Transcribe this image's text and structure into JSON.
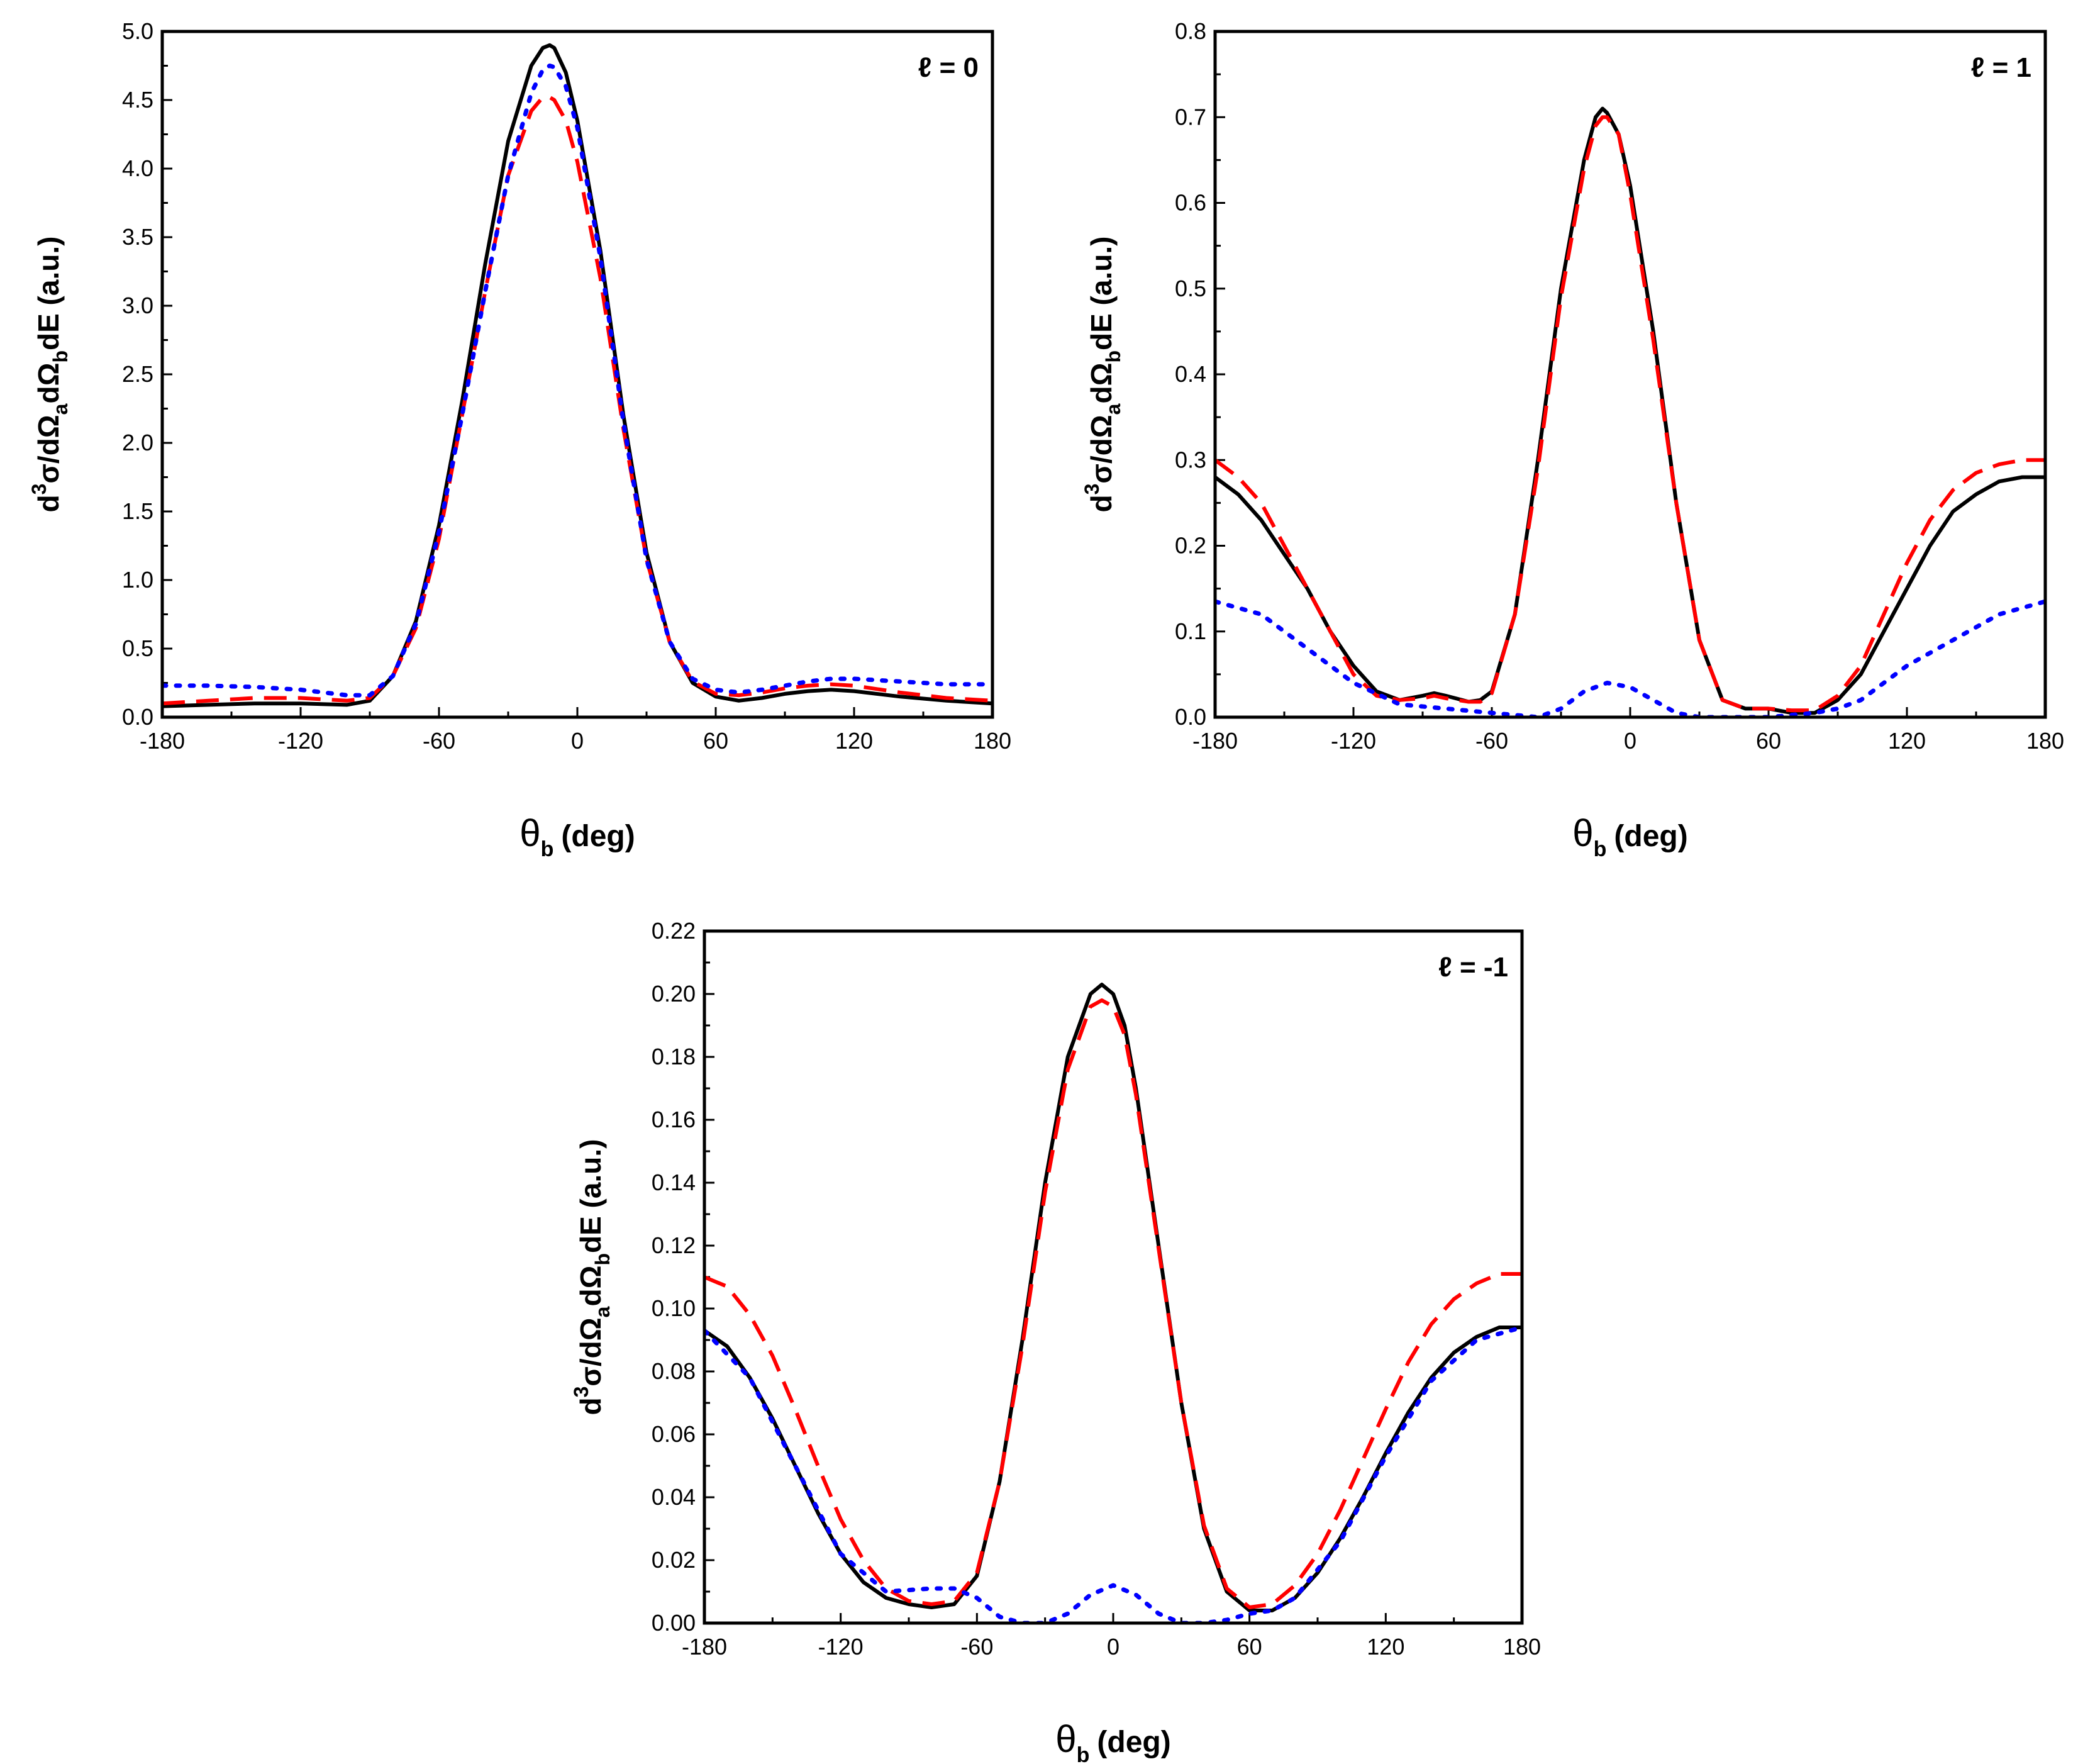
{
  "figure_caption": "",
  "chart_data": [
    {
      "type": "line",
      "panel_label": "ℓ = 0",
      "title": "",
      "xlabel_symbol": "θ",
      "xlabel_sub": "b",
      "xlabel_unit": "(deg)",
      "ylabel_parts": [
        "d",
        "3",
        "σ/dΩ",
        "a",
        "dΩ",
        "b",
        "dE (a.u.)"
      ],
      "xlim": [
        -180,
        180
      ],
      "ylim": [
        0,
        5.0
      ],
      "xticks": [
        "-180",
        "-120",
        "-60",
        "0",
        "60",
        "120",
        "180"
      ],
      "yticks": [
        "0.0",
        "0.5",
        "1.0",
        "1.5",
        "2.0",
        "2.5",
        "3.0",
        "3.5",
        "4.0",
        "4.5",
        "5.0"
      ],
      "series": [
        {
          "name": "solid",
          "color": "#000000",
          "style": "solid",
          "x": [
            -180,
            -160,
            -140,
            -120,
            -100,
            -90,
            -80,
            -70,
            -60,
            -50,
            -40,
            -30,
            -20,
            -15,
            -12,
            -10,
            -5,
            0,
            10,
            20,
            30,
            40,
            50,
            60,
            70,
            80,
            90,
            100,
            110,
            120,
            140,
            160,
            180
          ],
          "y": [
            0.08,
            0.09,
            0.1,
            0.1,
            0.09,
            0.12,
            0.3,
            0.7,
            1.4,
            2.3,
            3.3,
            4.2,
            4.75,
            4.88,
            4.9,
            4.88,
            4.7,
            4.35,
            3.4,
            2.2,
            1.2,
            0.55,
            0.25,
            0.15,
            0.12,
            0.14,
            0.17,
            0.19,
            0.2,
            0.19,
            0.15,
            0.12,
            0.1
          ]
        },
        {
          "name": "dashed",
          "color": "#ff0000",
          "style": "dashed",
          "x": [
            -180,
            -160,
            -140,
            -120,
            -100,
            -90,
            -80,
            -70,
            -60,
            -50,
            -40,
            -30,
            -20,
            -15,
            -12,
            -10,
            -5,
            0,
            10,
            20,
            30,
            40,
            50,
            60,
            70,
            80,
            90,
            100,
            110,
            120,
            140,
            160,
            180
          ],
          "y": [
            0.1,
            0.12,
            0.14,
            0.14,
            0.12,
            0.14,
            0.3,
            0.65,
            1.3,
            2.2,
            3.1,
            3.95,
            4.42,
            4.52,
            4.52,
            4.5,
            4.35,
            4.05,
            3.2,
            2.1,
            1.15,
            0.55,
            0.26,
            0.17,
            0.16,
            0.18,
            0.21,
            0.23,
            0.24,
            0.23,
            0.18,
            0.14,
            0.12
          ]
        },
        {
          "name": "dotted",
          "color": "#0000ff",
          "style": "dotted",
          "x": [
            -180,
            -160,
            -140,
            -120,
            -100,
            -90,
            -80,
            -70,
            -60,
            -50,
            -40,
            -30,
            -20,
            -15,
            -12,
            -10,
            -5,
            0,
            10,
            20,
            30,
            40,
            50,
            60,
            70,
            80,
            90,
            100,
            110,
            120,
            140,
            160,
            180
          ],
          "y": [
            0.23,
            0.23,
            0.22,
            0.2,
            0.16,
            0.16,
            0.3,
            0.68,
            1.35,
            2.2,
            3.1,
            3.95,
            4.55,
            4.72,
            4.75,
            4.74,
            4.6,
            4.3,
            3.35,
            2.15,
            1.15,
            0.55,
            0.28,
            0.2,
            0.18,
            0.2,
            0.23,
            0.26,
            0.28,
            0.28,
            0.26,
            0.24,
            0.24
          ]
        }
      ]
    },
    {
      "type": "line",
      "panel_label": "ℓ = 1",
      "title": "",
      "xlabel_symbol": "θ",
      "xlabel_sub": "b",
      "xlabel_unit": "(deg)",
      "ylabel_parts": [
        "d",
        "3",
        "σ/dΩ",
        "a",
        "dΩ",
        "b",
        "dE (a.u.)"
      ],
      "xlim": [
        -180,
        180
      ],
      "ylim": [
        0,
        0.8
      ],
      "xticks": [
        "-180",
        "-120",
        "-60",
        "0",
        "60",
        "120",
        "180"
      ],
      "yticks": [
        "0.0",
        "0.1",
        "0.2",
        "0.3",
        "0.4",
        "0.5",
        "0.6",
        "0.7",
        "0.8"
      ],
      "series": [
        {
          "name": "solid",
          "color": "#000000",
          "style": "solid",
          "x": [
            -180,
            -170,
            -160,
            -150,
            -140,
            -130,
            -120,
            -110,
            -100,
            -90,
            -85,
            -80,
            -70,
            -65,
            -60,
            -50,
            -40,
            -30,
            -20,
            -15,
            -12,
            -10,
            -5,
            0,
            10,
            20,
            30,
            40,
            50,
            60,
            70,
            80,
            90,
            100,
            110,
            120,
            130,
            140,
            150,
            160,
            170,
            175,
            180
          ],
          "y": [
            0.28,
            0.26,
            0.23,
            0.19,
            0.15,
            0.1,
            0.06,
            0.03,
            0.02,
            0.025,
            0.028,
            0.025,
            0.018,
            0.02,
            0.03,
            0.12,
            0.3,
            0.5,
            0.65,
            0.7,
            0.71,
            0.705,
            0.68,
            0.62,
            0.45,
            0.25,
            0.09,
            0.02,
            0.01,
            0.01,
            0.005,
            0.005,
            0.02,
            0.05,
            0.1,
            0.15,
            0.2,
            0.24,
            0.26,
            0.275,
            0.28,
            0.28,
            0.28
          ]
        },
        {
          "name": "dashed",
          "color": "#ff0000",
          "style": "dashed",
          "x": [
            -180,
            -170,
            -160,
            -150,
            -140,
            -130,
            -120,
            -110,
            -100,
            -90,
            -85,
            -80,
            -70,
            -65,
            -60,
            -50,
            -40,
            -30,
            -20,
            -15,
            -12,
            -10,
            -5,
            0,
            10,
            20,
            30,
            40,
            50,
            60,
            70,
            80,
            90,
            100,
            110,
            120,
            130,
            140,
            150,
            160,
            170,
            175,
            180
          ],
          "y": [
            0.3,
            0.28,
            0.25,
            0.2,
            0.15,
            0.1,
            0.05,
            0.025,
            0.02,
            0.022,
            0.025,
            0.022,
            0.018,
            0.018,
            0.028,
            0.12,
            0.29,
            0.49,
            0.64,
            0.69,
            0.7,
            0.7,
            0.68,
            0.61,
            0.44,
            0.25,
            0.09,
            0.02,
            0.01,
            0.01,
            0.008,
            0.008,
            0.025,
            0.06,
            0.12,
            0.18,
            0.23,
            0.265,
            0.285,
            0.295,
            0.3,
            0.3,
            0.3
          ]
        },
        {
          "name": "dotted",
          "color": "#0000ff",
          "style": "dotted",
          "x": [
            -180,
            -160,
            -140,
            -120,
            -100,
            -80,
            -60,
            -40,
            -30,
            -20,
            -10,
            0,
            10,
            20,
            30,
            40,
            60,
            80,
            90,
            100,
            110,
            120,
            140,
            160,
            180
          ],
          "y": [
            0.135,
            0.12,
            0.08,
            0.04,
            0.015,
            0.01,
            0.005,
            0.0,
            0.01,
            0.03,
            0.04,
            0.035,
            0.02,
            0.005,
            0.0,
            0.0,
            0.0,
            0.005,
            0.01,
            0.02,
            0.04,
            0.06,
            0.09,
            0.12,
            0.135
          ]
        }
      ]
    },
    {
      "type": "line",
      "panel_label": "ℓ = -1",
      "title": "",
      "xlabel_symbol": "θ",
      "xlabel_sub": "b",
      "xlabel_unit": "(deg)",
      "ylabel_parts": [
        "d",
        "3",
        "σ/dΩ",
        "a",
        "dΩ",
        "b",
        "dE (a.u.)"
      ],
      "xlim": [
        -180,
        180
      ],
      "ylim": [
        0,
        0.22
      ],
      "xticks": [
        "-180",
        "-120",
        "-60",
        "0",
        "60",
        "120",
        "180"
      ],
      "yticks": [
        "0.00",
        "0.02",
        "0.04",
        "0.06",
        "0.08",
        "0.10",
        "0.12",
        "0.14",
        "0.16",
        "0.18",
        "0.20",
        "0.22"
      ],
      "series": [
        {
          "name": "solid",
          "color": "#000000",
          "style": "solid",
          "x": [
            -180,
            -170,
            -160,
            -150,
            -140,
            -130,
            -120,
            -110,
            -100,
            -90,
            -80,
            -70,
            -60,
            -50,
            -40,
            -30,
            -20,
            -10,
            -5,
            0,
            5,
            10,
            20,
            30,
            40,
            50,
            60,
            70,
            80,
            90,
            100,
            110,
            120,
            130,
            140,
            150,
            160,
            170,
            180
          ],
          "y": [
            0.093,
            0.088,
            0.078,
            0.065,
            0.05,
            0.035,
            0.022,
            0.013,
            0.008,
            0.006,
            0.005,
            0.006,
            0.015,
            0.045,
            0.09,
            0.14,
            0.18,
            0.2,
            0.203,
            0.2,
            0.19,
            0.17,
            0.12,
            0.07,
            0.03,
            0.01,
            0.004,
            0.004,
            0.008,
            0.016,
            0.027,
            0.04,
            0.054,
            0.067,
            0.078,
            0.086,
            0.091,
            0.094,
            0.094
          ]
        },
        {
          "name": "dashed",
          "color": "#ff0000",
          "style": "dashed",
          "x": [
            -180,
            -170,
            -160,
            -150,
            -140,
            -130,
            -120,
            -110,
            -100,
            -90,
            -80,
            -70,
            -60,
            -50,
            -40,
            -30,
            -20,
            -10,
            -5,
            0,
            5,
            10,
            20,
            30,
            40,
            50,
            60,
            70,
            80,
            90,
            100,
            110,
            120,
            130,
            140,
            150,
            160,
            170,
            180
          ],
          "y": [
            0.11,
            0.107,
            0.098,
            0.085,
            0.068,
            0.05,
            0.033,
            0.02,
            0.011,
            0.007,
            0.006,
            0.007,
            0.016,
            0.045,
            0.088,
            0.137,
            0.176,
            0.196,
            0.198,
            0.196,
            0.187,
            0.168,
            0.119,
            0.07,
            0.031,
            0.011,
            0.005,
            0.006,
            0.012,
            0.022,
            0.036,
            0.052,
            0.068,
            0.083,
            0.095,
            0.103,
            0.108,
            0.111,
            0.111
          ]
        },
        {
          "name": "dotted",
          "color": "#0000ff",
          "style": "dotted",
          "x": [
            -180,
            -160,
            -140,
            -120,
            -100,
            -80,
            -70,
            -60,
            -50,
            -40,
            -30,
            -20,
            -10,
            0,
            10,
            20,
            30,
            40,
            50,
            60,
            70,
            80,
            100,
            120,
            140,
            160,
            180
          ],
          "y": [
            0.093,
            0.078,
            0.05,
            0.022,
            0.01,
            0.011,
            0.011,
            0.008,
            0.002,
            0.0,
            0.0,
            0.003,
            0.009,
            0.012,
            0.009,
            0.003,
            0.0,
            0.0,
            0.001,
            0.003,
            0.004,
            0.008,
            0.026,
            0.053,
            0.077,
            0.09,
            0.094
          ]
        }
      ]
    }
  ]
}
